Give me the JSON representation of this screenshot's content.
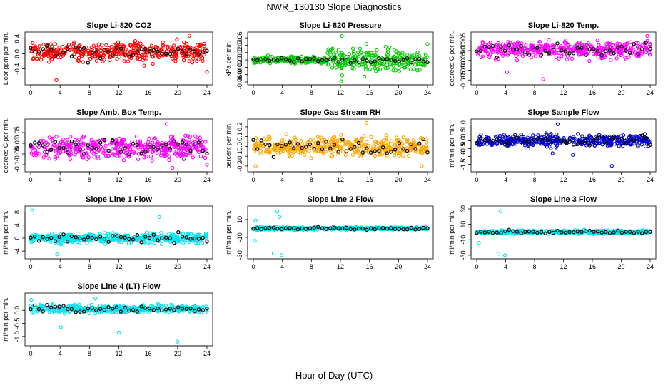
{
  "figure": {
    "title": "NWR_130130  Slope Diagnostics",
    "xlabel": "Hour of Day (UTC)"
  },
  "chart_data": [
    {
      "type": "scatter",
      "title": "Slope Li-820 CO2",
      "ylabel": "Licor ppm per min.",
      "color": "#ff0000",
      "xlim": [
        0,
        24
      ],
      "xticks": [
        0,
        4,
        8,
        12,
        16,
        20,
        24
      ],
      "ylim": [
        -0.75,
        0.5
      ],
      "yticks": [
        -0.4,
        0.0,
        0.4
      ],
      "ytick_labels": [
        "-0.4",
        "0.0",
        "0.4"
      ],
      "gen": {
        "center": 0.05,
        "spread": 0.17,
        "dense": []
      },
      "outliers": [
        [
          3.5,
          -0.7
        ],
        [
          21.6,
          0.48
        ],
        [
          24,
          -0.48
        ]
      ]
    },
    {
      "type": "scatter",
      "title": "Slope Li-820 Pressure",
      "ylabel": "kPa per min.",
      "color": "#00cc00",
      "xlim": [
        0,
        24
      ],
      "xticks": [
        0,
        4,
        8,
        12,
        16,
        20,
        24
      ],
      "ylim": [
        -0.06,
        0.068
      ],
      "yticks": [
        -0.06,
        -0.04,
        -0.02,
        0.0,
        0.02,
        0.04,
        0.06
      ],
      "ytick_labels": [
        "-0.06",
        "-0.04",
        "-0.02",
        "0.00",
        "0.02",
        "0.04",
        "0.06"
      ],
      "gen": {
        "center": 0.0,
        "spread": 0.006,
        "dense": [
          [
            10,
            24,
            0.02
          ]
        ]
      },
      "outliers": [
        [
          12.2,
          0.065
        ],
        [
          12.1,
          -0.058
        ],
        [
          15.3,
          -0.045
        ],
        [
          24,
          0.043
        ]
      ]
    },
    {
      "type": "scatter",
      "title": "Slope Li-820 Temp.",
      "ylabel": "degrees C per min.",
      "color": "#ff00ff",
      "xlim": [
        0,
        24
      ],
      "xticks": [
        0,
        4,
        8,
        12,
        16,
        20,
        24
      ],
      "ylim": [
        -0.016,
        0.008
      ],
      "yticks": [
        -0.015,
        -0.01,
        -0.005,
        0.0,
        0.005
      ],
      "ytick_labels": [
        "-0.015",
        "-0.010",
        "-0.005",
        "0.000",
        "0.005"
      ],
      "gen": {
        "center": 0.0005,
        "spread": 0.003,
        "dense": []
      },
      "outliers": [
        [
          9.2,
          -0.0145
        ],
        [
          4.2,
          -0.011
        ],
        [
          23.6,
          0.0075
        ]
      ]
    },
    {
      "type": "scatter",
      "title": "Slope Amb. Box Temp.",
      "ylabel": "degrees C per min.",
      "color": "#ff00ff",
      "xlim": [
        0,
        24
      ],
      "xticks": [
        0,
        4,
        8,
        12,
        16,
        20,
        24
      ],
      "ylim": [
        -0.12,
        0.1
      ],
      "yticks": [
        -0.1,
        -0.05,
        0.0,
        0.05
      ],
      "ytick_labels": [
        "-0.10",
        "-0.05",
        "0.00",
        "0.05"
      ],
      "gen": {
        "center": -0.02,
        "spread": 0.035,
        "dense": []
      },
      "outliers": [
        [
          18.5,
          0.09
        ],
        [
          19.3,
          -0.115
        ],
        [
          24,
          -0.1
        ]
      ]
    },
    {
      "type": "scatter",
      "title": "Slope Gas Stream RH",
      "ylabel": "percent per min.",
      "color": "#ffa500",
      "xlim": [
        0,
        24
      ],
      "xticks": [
        0,
        4,
        8,
        12,
        16,
        20,
        24
      ],
      "ylim": [
        -0.23,
        0.25
      ],
      "yticks": [
        -0.2,
        -0.1,
        0.0,
        0.1,
        0.2
      ],
      "ytick_labels": [
        "-0.2",
        "-0.1",
        "0.0",
        "0.1",
        "0.2"
      ],
      "gen": {
        "center": 0.0,
        "spread": 0.07,
        "dense": []
      },
      "outliers": [
        [
          15.6,
          0.24
        ],
        [
          0.3,
          -0.2
        ],
        [
          23.2,
          -0.2
        ]
      ]
    },
    {
      "type": "scatter",
      "title": "Slope Sample Flow",
      "ylabel": "ml/min per min.",
      "color": "#0000cc",
      "xlim": [
        0,
        24
      ],
      "xticks": [
        0,
        4,
        8,
        12,
        16,
        20,
        24
      ],
      "ylim": [
        -1.8,
        1.2
      ],
      "yticks": [
        -1.5,
        -1.0,
        -0.5,
        0.0,
        0.5,
        1.0
      ],
      "ytick_labels": [
        "-1.5",
        "-1.0",
        "-0.5",
        "0.0",
        "0.5",
        "1.0"
      ],
      "gen": {
        "center": 0.0,
        "spread": 0.25,
        "dense": []
      },
      "outliers": [
        [
          18.7,
          -1.6
        ],
        [
          11.2,
          1.05
        ],
        [
          13.3,
          -0.9
        ],
        [
          10.5,
          -0.8
        ]
      ]
    },
    {
      "type": "scatter",
      "title": "Slope Line 1 Flow",
      "ylabel": "ml/min per min.",
      "color": "#00e5ee",
      "xlim": [
        0,
        24
      ],
      "xticks": [
        0,
        4,
        8,
        12,
        16,
        20,
        24
      ],
      "ylim": [
        -5.5,
        9
      ],
      "yticks": [
        -4,
        0,
        4,
        8
      ],
      "ytick_labels": [
        "-4",
        "0",
        "4",
        "8"
      ],
      "gen": {
        "center": 0.0,
        "spread": 1.0,
        "dense": []
      },
      "outliers": [
        [
          0.2,
          8.5
        ],
        [
          3.6,
          -5
        ],
        [
          17.5,
          6.5
        ]
      ]
    },
    {
      "type": "scatter",
      "title": "Slope Line 2 Flow",
      "ylabel": "ml/min per min.",
      "color": "#00e5ee",
      "xlim": [
        0,
        24
      ],
      "xticks": [
        0,
        4,
        8,
        12,
        16,
        20,
        24
      ],
      "ylim": [
        -31,
        22
      ],
      "yticks": [
        -30,
        -10,
        10
      ],
      "ytick_labels": [
        "-30",
        "-10",
        "10"
      ],
      "gen": {
        "center": 0.0,
        "spread": 1.0,
        "dense": []
      },
      "outliers": [
        [
          0.2,
          -14
        ],
        [
          3.3,
          19
        ],
        [
          3.9,
          -30
        ],
        [
          3.6,
          13
        ],
        [
          2.8,
          -28
        ],
        [
          0.3,
          9
        ]
      ]
    },
    {
      "type": "scatter",
      "title": "Slope Line 3 Flow",
      "ylabel": "ml/min per min.",
      "color": "#00e5ee",
      "xlim": [
        0,
        24
      ],
      "xticks": [
        0,
        4,
        8,
        12,
        16,
        20,
        24
      ],
      "ylim": [
        -31,
        30
      ],
      "yticks": [
        -30,
        -10,
        10,
        30
      ],
      "ytick_labels": [
        "-30",
        "-10",
        "10",
        "30"
      ],
      "gen": {
        "center": 0.0,
        "spread": 1.5,
        "dense": []
      },
      "outliers": [
        [
          3.3,
          27
        ],
        [
          3.9,
          -30
        ],
        [
          0.3,
          -14
        ],
        [
          3.0,
          -28
        ]
      ]
    },
    {
      "type": "scatter",
      "title": "Slope Line 4 (LT) Flow",
      "ylabel": "ml/min per min.",
      "color": "#00e5ee",
      "xlim": [
        0,
        24
      ],
      "xticks": [
        0,
        4,
        8,
        12,
        16,
        20,
        24
      ],
      "ylim": [
        -1.25,
        0.55
      ],
      "yticks": [
        -1.0,
        -0.5,
        0.0
      ],
      "ytick_labels": [
        "-1.0",
        "-0.5",
        "0.0"
      ],
      "gen": {
        "center": 0.05,
        "spread": 0.1,
        "dense": []
      },
      "outliers": [
        [
          12,
          -0.85
        ],
        [
          20,
          -1.2
        ],
        [
          4.1,
          -0.65
        ],
        [
          8.8,
          0.45
        ],
        [
          0.1,
          0.4
        ]
      ]
    }
  ]
}
